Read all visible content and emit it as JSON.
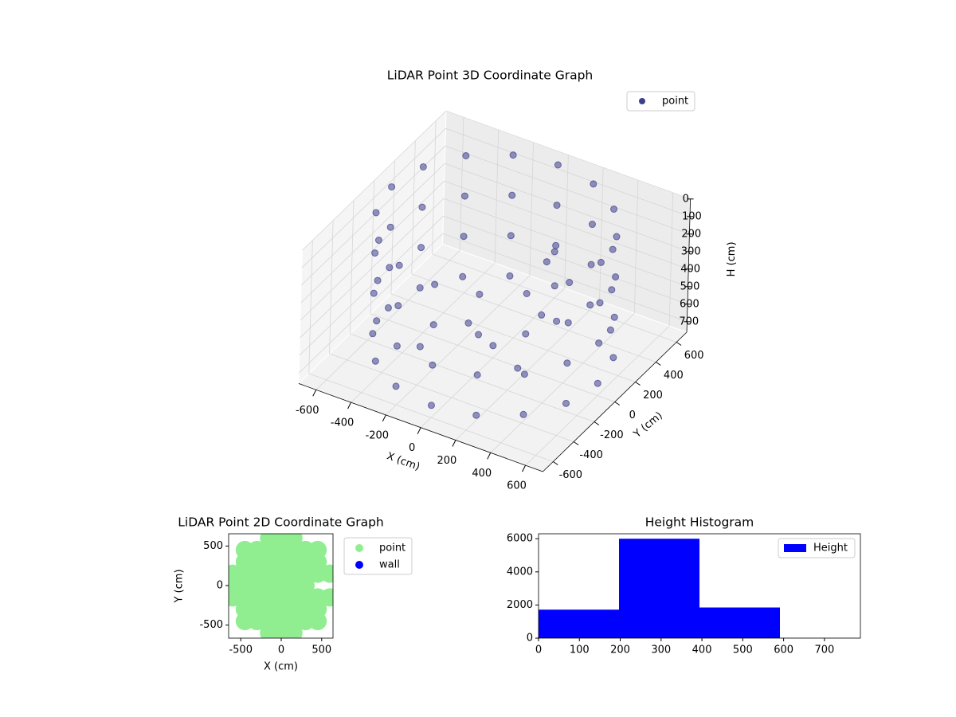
{
  "chart_data": [
    {
      "type": "scatter3d",
      "title": "LiDAR Point 3D Coordinate Graph",
      "xlabel": "X (cm)",
      "ylabel": "Y (cm)",
      "zlabel": "H (cm)",
      "xlim": [
        -700,
        700
      ],
      "ylim": [
        -700,
        700
      ],
      "zlim": [
        0,
        760
      ],
      "invert_z": true,
      "xticks": [
        -600,
        -400,
        -200,
        0,
        200,
        400,
        600
      ],
      "yticks": [
        -600,
        -400,
        -200,
        0,
        200,
        400,
        600
      ],
      "zticks": [
        0,
        100,
        200,
        300,
        400,
        500,
        600,
        700
      ],
      "legend": "upper right",
      "series": [
        {
          "name": "point",
          "color": "#3e3f8c",
          "x": [
            600,
            554,
            424,
            230,
            0,
            -230,
            -424,
            -554,
            -600,
            -554,
            -424,
            -230,
            0,
            230,
            424,
            554,
            600,
            554,
            424,
            230,
            0,
            -230,
            -424,
            -554,
            -600,
            -554,
            -424,
            -230,
            0,
            230,
            424,
            554,
            600,
            554,
            424,
            230,
            0,
            -230,
            -424,
            -554,
            -600,
            -554,
            -424,
            -230,
            0,
            230,
            424,
            554,
            600,
            554,
            424,
            230,
            0,
            -230,
            -424,
            -554,
            -600,
            -554,
            -424,
            -230,
            0,
            230,
            424,
            554,
            0,
            -200,
            200,
            -300,
            100,
            300,
            150,
            250
          ],
          "y": [
            0,
            230,
            424,
            554,
            600,
            554,
            424,
            230,
            0,
            -230,
            -424,
            -554,
            -600,
            -554,
            -424,
            -230,
            0,
            230,
            424,
            554,
            600,
            554,
            424,
            230,
            0,
            -230,
            -424,
            -554,
            -600,
            -554,
            -424,
            -230,
            0,
            230,
            424,
            554,
            600,
            554,
            424,
            230,
            0,
            -230,
            -424,
            -554,
            -600,
            -554,
            -424,
            -230,
            0,
            230,
            424,
            554,
            600,
            554,
            424,
            230,
            0,
            -230,
            -424,
            -554,
            -600,
            -554,
            -424,
            -230,
            0,
            100,
            -100,
            -200,
            300,
            100,
            250,
            150
          ],
          "z": [
            0,
            0,
            0,
            0,
            0,
            0,
            0,
            0,
            0,
            0,
            0,
            0,
            0,
            0,
            0,
            0,
            230,
            230,
            230,
            230,
            230,
            230,
            230,
            230,
            230,
            230,
            230,
            230,
            230,
            230,
            230,
            230,
            460,
            460,
            460,
            460,
            460,
            460,
            460,
            460,
            460,
            460,
            460,
            460,
            460,
            460,
            460,
            460,
            690,
            690,
            690,
            690,
            690,
            690,
            690,
            690,
            690,
            690,
            690,
            690,
            690,
            690,
            690,
            690,
            690,
            690,
            690,
            690,
            650,
            500,
            300,
            150
          ]
        }
      ]
    },
    {
      "type": "scatter",
      "title": "LiDAR Point 2D Coordinate Graph",
      "xlabel": "X (cm)",
      "ylabel": "Y (cm)",
      "xlim": [
        -650,
        640
      ],
      "ylim": [
        -665,
        655
      ],
      "xticks": [
        -500,
        0,
        500
      ],
      "yticks": [
        -500,
        0,
        500
      ],
      "legend": "outside right",
      "series": [
        {
          "name": "point",
          "color": "#90ee90",
          "x": [
            -150,
            0,
            150,
            -450,
            -300,
            -150,
            0,
            150,
            300,
            450,
            -450,
            -300,
            -150,
            0,
            150,
            300,
            450,
            -600,
            -450,
            -300,
            -150,
            0,
            150,
            300,
            450,
            600,
            -600,
            -450,
            -300,
            -150,
            0,
            150,
            300,
            -600,
            -450,
            -300,
            -150,
            0,
            150,
            300,
            450,
            600,
            -450,
            -300,
            -150,
            0,
            150,
            300,
            450,
            -450,
            -300,
            -150,
            0,
            150,
            300,
            450,
            -150,
            0,
            150
          ],
          "y": [
            600,
            600,
            600,
            450,
            450,
            450,
            450,
            450,
            450,
            450,
            300,
            300,
            300,
            300,
            300,
            300,
            300,
            150,
            150,
            150,
            150,
            150,
            150,
            150,
            150,
            150,
            0,
            0,
            0,
            0,
            0,
            0,
            0,
            -150,
            -150,
            -150,
            -150,
            -150,
            -150,
            -150,
            -150,
            -150,
            -300,
            -300,
            -300,
            -300,
            -300,
            -300,
            -300,
            -450,
            -450,
            -450,
            -450,
            -450,
            -450,
            -450,
            -600,
            -600,
            -600
          ]
        },
        {
          "name": "wall",
          "color": "#0000ff",
          "x": [],
          "y": []
        }
      ]
    },
    {
      "type": "histogram",
      "title": "Height Histogram",
      "bins": [
        0,
        197,
        394,
        591,
        788
      ],
      "xlim": [
        0,
        788
      ],
      "ylim": [
        0,
        6300
      ],
      "xticks": [
        0,
        100,
        200,
        300,
        400,
        500,
        600,
        700
      ],
      "yticks": [
        0,
        2000,
        4000,
        6000
      ],
      "legend": "upper right",
      "series": [
        {
          "name": "Height",
          "color": "#0000ff",
          "values": [
            1720,
            6000,
            1850,
            10
          ]
        }
      ]
    }
  ]
}
